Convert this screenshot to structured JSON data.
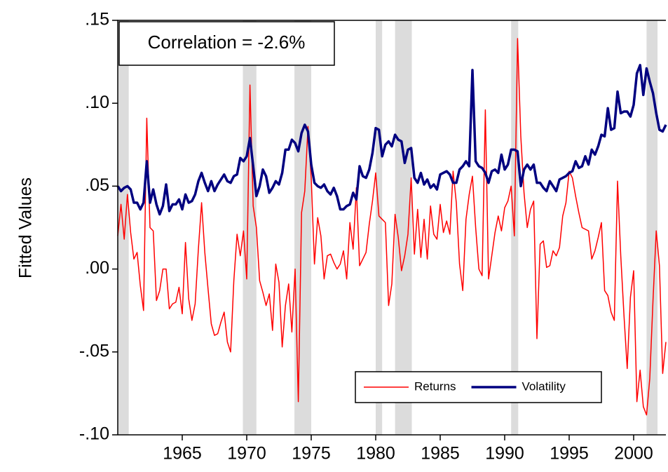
{
  "chart_data": {
    "type": "line",
    "y_label": "Fitted Values",
    "annotation": "Correlation = -2.6%",
    "xlim": [
      1960,
      2002.5
    ],
    "xticks": [
      1965,
      1970,
      1975,
      1980,
      1985,
      1990,
      1995,
      2000
    ],
    "ylim": [
      -0.1,
      0.15
    ],
    "yticks": [
      {
        "value": -0.1,
        "label": "-.10"
      },
      {
        "value": -0.05,
        "label": "-.05"
      },
      {
        "value": 0,
        "label": ".00"
      },
      {
        "value": 0.05,
        "label": ".05"
      },
      {
        "value": 0.1,
        "label": ".10"
      },
      {
        "value": 0.15,
        "label": ".15"
      }
    ],
    "shaded_periods": [
      [
        1960,
        1960.85
      ],
      [
        1969.7,
        1970.75
      ],
      [
        1973.7,
        1975
      ],
      [
        1980,
        1980.5
      ],
      [
        1981.5,
        1982.8
      ],
      [
        1990.5,
        1991.05
      ],
      [
        2001,
        2001.85
      ]
    ],
    "shade_color": "#dcdcdc",
    "legend": "lower right",
    "x": [
      1960,
      1960.25,
      1960.5,
      1960.75,
      1961,
      1961.25,
      1961.5,
      1961.75,
      1962,
      1962.25,
      1962.5,
      1962.75,
      1963,
      1963.25,
      1963.5,
      1963.75,
      1964,
      1964.25,
      1964.5,
      1964.75,
      1965,
      1965.25,
      1965.5,
      1965.75,
      1966,
      1966.25,
      1966.5,
      1966.75,
      1967,
      1967.25,
      1967.5,
      1967.75,
      1968,
      1968.25,
      1968.5,
      1968.75,
      1969,
      1969.25,
      1969.5,
      1969.75,
      1970,
      1970.25,
      1970.5,
      1970.75,
      1971,
      1971.25,
      1971.5,
      1971.75,
      1972,
      1972.25,
      1972.5,
      1972.75,
      1973,
      1973.25,
      1973.5,
      1973.75,
      1974,
      1974.25,
      1974.5,
      1974.75,
      1975,
      1975.25,
      1975.5,
      1975.75,
      1976,
      1976.25,
      1976.5,
      1976.75,
      1977,
      1977.25,
      1977.5,
      1977.75,
      1978,
      1978.25,
      1978.5,
      1978.75,
      1979,
      1979.25,
      1979.5,
      1979.75,
      1980,
      1980.25,
      1980.5,
      1980.75,
      1981,
      1981.25,
      1981.5,
      1981.75,
      1982,
      1982.25,
      1982.5,
      1982.75,
      1983,
      1983.25,
      1983.5,
      1983.75,
      1984,
      1984.25,
      1984.5,
      1984.75,
      1985,
      1985.25,
      1985.5,
      1985.75,
      1986,
      1986.25,
      1986.5,
      1986.75,
      1987,
      1987.25,
      1987.5,
      1987.75,
      1988,
      1988.25,
      1988.5,
      1988.75,
      1989,
      1989.25,
      1989.5,
      1989.75,
      1990,
      1990.25,
      1990.5,
      1990.75,
      1991,
      1991.25,
      1991.5,
      1991.75,
      1992,
      1992.25,
      1992.5,
      1992.75,
      1993,
      1993.25,
      1993.5,
      1993.75,
      1994,
      1994.25,
      1994.5,
      1994.75,
      1995,
      1995.25,
      1995.5,
      1995.75,
      1996,
      1996.25,
      1996.5,
      1996.75,
      1997,
      1997.25,
      1997.5,
      1997.75,
      1998,
      1998.25,
      1998.5,
      1998.75,
      1999,
      1999.25,
      1999.5,
      1999.75,
      2000,
      2000.25,
      2000.5,
      2000.75,
      2001,
      2001.25,
      2001.5,
      2001.75,
      2002,
      2002.25,
      2002.5
    ],
    "series": [
      {
        "name": "Returns",
        "color": "#ff0000",
        "width": 1.5,
        "values": [
          0.02,
          0.039,
          0.018,
          0.045,
          0.022,
          0.006,
          0.01,
          -0.01,
          -0.025,
          0.091,
          0.025,
          0.023,
          -0.019,
          -0.013,
          0.0,
          0.0,
          -0.024,
          -0.021,
          -0.02,
          -0.011,
          -0.027,
          0.016,
          -0.018,
          -0.031,
          -0.021,
          0.012,
          0.04,
          0.01,
          -0.012,
          -0.033,
          -0.04,
          -0.039,
          -0.032,
          -0.026,
          -0.044,
          -0.05,
          -0.007,
          0.021,
          0.008,
          0.023,
          -0.006,
          0.111,
          0.038,
          0.025,
          -0.007,
          -0.014,
          -0.022,
          -0.015,
          -0.037,
          0.003,
          -0.008,
          -0.047,
          -0.022,
          -0.009,
          -0.038,
          0.0,
          -0.08,
          0.034,
          0.047,
          0.086,
          0.055,
          0.003,
          0.031,
          0.02,
          -0.006,
          0.008,
          0.009,
          0.004,
          0.0,
          0.003,
          0.011,
          -0.006,
          0.028,
          0.012,
          0.049,
          0.002,
          0.006,
          0.01,
          0.027,
          0.041,
          0.058,
          0.032,
          0.03,
          0.028,
          -0.022,
          -0.009,
          0.033,
          0.019,
          -0.001,
          0.008,
          0.021,
          0.055,
          0.009,
          0.036,
          0.007,
          0.03,
          0.006,
          0.038,
          0.021,
          0.018,
          0.039,
          0.022,
          0.029,
          0.021,
          0.059,
          0.04,
          0.003,
          -0.013,
          0.03,
          0.045,
          0.056,
          0.025,
          0.0,
          -0.004,
          0.096,
          -0.006,
          0.008,
          0.022,
          0.032,
          0.023,
          0.037,
          0.041,
          0.05,
          0.02,
          0.139,
          0.08,
          0.046,
          0.025,
          0.036,
          0.041,
          -0.042,
          0.015,
          0.017,
          0.001,
          0.002,
          0.011,
          0.008,
          0.013,
          0.032,
          0.04,
          0.059,
          0.055,
          0.044,
          0.034,
          0.025,
          0.024,
          0.023,
          0.006,
          0.011,
          0.019,
          0.028,
          -0.013,
          -0.016,
          -0.026,
          -0.031,
          0.053,
          0.008,
          -0.028,
          -0.06,
          -0.017,
          -0.001,
          -0.08,
          -0.061,
          -0.083,
          -0.088,
          -0.066,
          -0.019,
          0.023,
          0.002,
          -0.063,
          -0.044
        ]
      },
      {
        "name": "Volatility",
        "color": "#000080",
        "width": 3.5,
        "values": [
          0.05,
          0.047,
          0.049,
          0.05,
          0.048,
          0.04,
          0.04,
          0.036,
          0.04,
          0.065,
          0.04,
          0.048,
          0.039,
          0.033,
          0.038,
          0.051,
          0.035,
          0.039,
          0.039,
          0.042,
          0.036,
          0.045,
          0.04,
          0.041,
          0.045,
          0.053,
          0.058,
          0.052,
          0.047,
          0.053,
          0.047,
          0.051,
          0.054,
          0.057,
          0.053,
          0.052,
          0.056,
          0.057,
          0.067,
          0.065,
          0.068,
          0.079,
          0.062,
          0.044,
          0.05,
          0.06,
          0.056,
          0.046,
          0.049,
          0.053,
          0.051,
          0.058,
          0.072,
          0.072,
          0.078,
          0.076,
          0.071,
          0.082,
          0.087,
          0.083,
          0.063,
          0.052,
          0.05,
          0.049,
          0.051,
          0.047,
          0.045,
          0.049,
          0.044,
          0.036,
          0.036,
          0.038,
          0.039,
          0.046,
          0.042,
          0.062,
          0.056,
          0.055,
          0.06,
          0.07,
          0.085,
          0.084,
          0.068,
          0.075,
          0.077,
          0.074,
          0.081,
          0.078,
          0.077,
          0.064,
          0.072,
          0.073,
          0.055,
          0.052,
          0.058,
          0.051,
          0.054,
          0.049,
          0.051,
          0.048,
          0.057,
          0.058,
          0.059,
          0.057,
          0.052,
          0.052,
          0.06,
          0.062,
          0.065,
          0.062,
          0.12,
          0.065,
          0.062,
          0.061,
          0.058,
          0.052,
          0.059,
          0.06,
          0.058,
          0.069,
          0.06,
          0.063,
          0.072,
          0.072,
          0.071,
          0.05,
          0.06,
          0.063,
          0.06,
          0.063,
          0.052,
          0.052,
          0.049,
          0.047,
          0.053,
          0.05,
          0.047,
          0.054,
          0.055,
          0.056,
          0.058,
          0.059,
          0.065,
          0.061,
          0.062,
          0.068,
          0.063,
          0.072,
          0.069,
          0.074,
          0.081,
          0.08,
          0.097,
          0.084,
          0.085,
          0.107,
          0.094,
          0.095,
          0.095,
          0.092,
          0.099,
          0.118,
          0.123,
          0.105,
          0.121,
          0.113,
          0.106,
          0.094,
          0.084,
          0.083,
          0.087
        ]
      }
    ]
  }
}
